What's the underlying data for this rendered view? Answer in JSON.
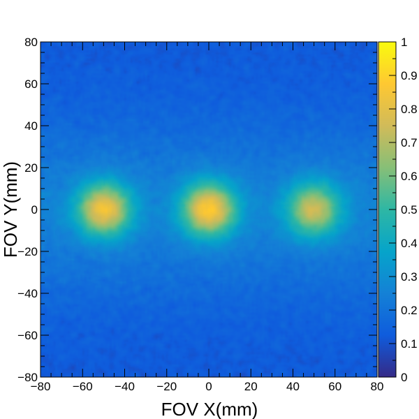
{
  "chart_data": {
    "type": "heatmap",
    "title": "",
    "xlabel": "FOV X(mm)",
    "ylabel": "FOV Y(mm)",
    "xlim": [
      -80,
      80
    ],
    "ylim": [
      -80,
      80
    ],
    "zlim": [
      0,
      1
    ],
    "x_ticks": [
      -80,
      -60,
      -40,
      -20,
      0,
      20,
      40,
      60,
      80
    ],
    "y_ticks": [
      -80,
      -60,
      -40,
      -20,
      0,
      20,
      40,
      60,
      80
    ],
    "z_ticks": [
      0,
      0.1,
      0.2,
      0.3,
      0.4,
      0.5,
      0.6,
      0.7,
      0.8,
      0.9,
      1
    ],
    "x_tick_labels": [
      "−80",
      "−60",
      "−40",
      "−20",
      "0",
      "20",
      "40",
      "60",
      "80"
    ],
    "y_tick_labels": [
      "−80",
      "−60",
      "−40",
      "−20",
      "0",
      "20",
      "40",
      "60",
      "80"
    ],
    "z_tick_labels": [
      "0",
      "0.1",
      "0.2",
      "0.3",
      "0.4",
      "0.5",
      "0.6",
      "0.7",
      "0.8",
      "0.9",
      "1"
    ],
    "colormap": "parula",
    "colorscale": [
      "#352a87",
      "#0f5cdd",
      "#1481d6",
      "#06a4ca",
      "#2eb7a4",
      "#87bf77",
      "#d1bb59",
      "#fec832",
      "#f9fb0e"
    ],
    "background_level": 0.12,
    "band": {
      "y_center": 0,
      "y_sigma": 30,
      "level": 0.13
    },
    "hot_spots": [
      {
        "x": -50,
        "y": 0,
        "peak": 0.72,
        "sigma": 9
      },
      {
        "x": 0,
        "y": 0,
        "peak": 0.76,
        "sigma": 9
      },
      {
        "x": 50,
        "y": 0,
        "peak": 0.62,
        "sigma": 9
      }
    ],
    "grid": false,
    "legend": "colorbar-right"
  }
}
